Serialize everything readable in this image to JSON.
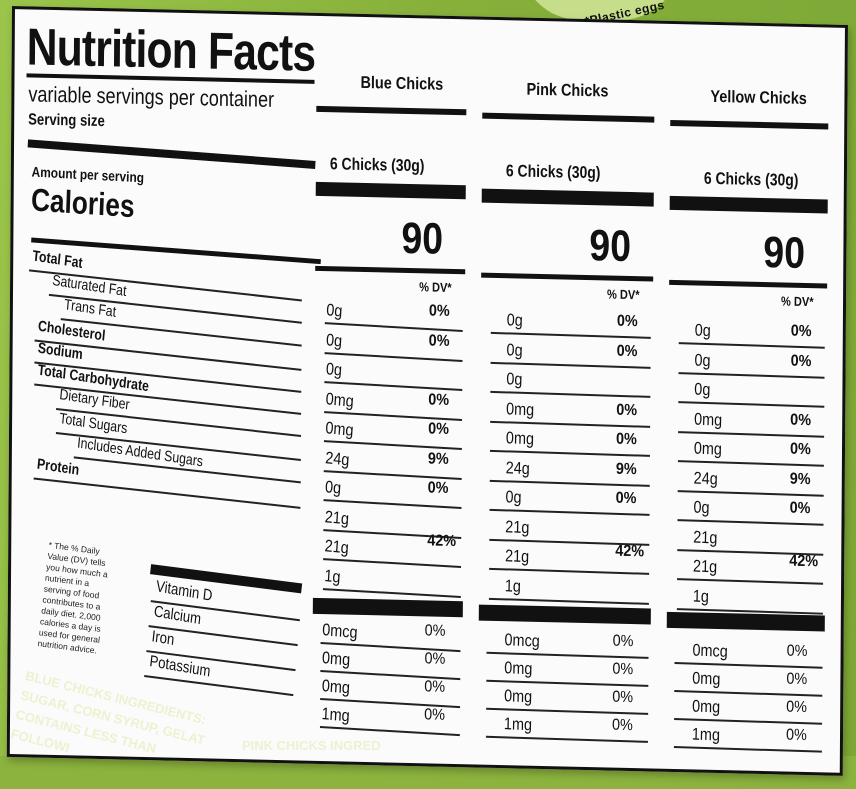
{
  "title": "Nutrition Facts",
  "servings_text": "variable servings per container",
  "serving_size_label": "Serving size",
  "amount_label": "Amount per serving",
  "calories_label": "Calories",
  "egg_note": "*Plastic eggs",
  "nutrient_labels": [
    {
      "text": "Total Fat",
      "bold": true
    },
    {
      "text": "Saturated Fat",
      "bold": false
    },
    {
      "text": "Trans Fat",
      "bold": false
    },
    {
      "text": "Cholesterol",
      "bold": true
    },
    {
      "text": "Sodium",
      "bold": true
    },
    {
      "text": "Total Carbohydrate",
      "bold": true
    },
    {
      "text": "Dietary Fiber",
      "bold": false
    },
    {
      "text": "Total Sugars",
      "bold": false
    },
    {
      "text": "Includes Added Sugars",
      "bold": false
    },
    {
      "text": "Protein",
      "bold": true
    }
  ],
  "vitamin_labels": [
    "Vitamin D",
    "Calcium",
    "Iron",
    "Potassium"
  ],
  "footnote": "* The % Daily Value (DV) tells you how much a nutrient in a serving of food contributes to a daily diet. 2,000 calories a day is used for general nutrition advice.",
  "columns": [
    {
      "name": "Blue Chicks",
      "serving": "6 Chicks (30g)",
      "calories": "90",
      "dv_header": "% DV*",
      "amounts": [
        "0g",
        "0g",
        "0g",
        "0mg",
        "0mg",
        "24g",
        "0g",
        "21g",
        "21g",
        "1g"
      ],
      "dv": [
        "0%",
        "0%",
        "",
        "0%",
        "0%",
        "9%",
        "0%",
        "",
        "42%",
        ""
      ],
      "vitamins": [
        {
          "amount": "0mcg",
          "dv": "0%"
        },
        {
          "amount": "0mg",
          "dv": "0%"
        },
        {
          "amount": "0mg",
          "dv": "0%"
        },
        {
          "amount": "1mg",
          "dv": "0%"
        }
      ]
    },
    {
      "name": "Pink Chicks",
      "serving": "6 Chicks (30g)",
      "calories": "90",
      "dv_header": "% DV*",
      "amounts": [
        "0g",
        "0g",
        "0g",
        "0mg",
        "0mg",
        "24g",
        "0g",
        "21g",
        "21g",
        "1g"
      ],
      "dv": [
        "0%",
        "0%",
        "",
        "0%",
        "0%",
        "9%",
        "0%",
        "",
        "42%",
        ""
      ],
      "vitamins": [
        {
          "amount": "0mcg",
          "dv": "0%"
        },
        {
          "amount": "0mg",
          "dv": "0%"
        },
        {
          "amount": "0mg",
          "dv": "0%"
        },
        {
          "amount": "1mg",
          "dv": "0%"
        }
      ]
    },
    {
      "name": "Yellow Chicks",
      "serving": "6 Chicks (30g)",
      "calories": "90",
      "dv_header": "% DV*",
      "amounts": [
        "0g",
        "0g",
        "0g",
        "0mg",
        "0mg",
        "24g",
        "0g",
        "21g",
        "21g",
        "1g"
      ],
      "dv": [
        "0%",
        "0%",
        "",
        "0%",
        "0%",
        "9%",
        "0%",
        "",
        "42%",
        ""
      ],
      "vitamins": [
        {
          "amount": "0mcg",
          "dv": "0%"
        },
        {
          "amount": "0mg",
          "dv": "0%"
        },
        {
          "amount": "0mg",
          "dv": "0%"
        },
        {
          "amount": "1mg",
          "dv": "0%"
        }
      ]
    }
  ],
  "ingredients_lines": [
    "BLUE CHICKS INGREDIENTS:",
    "SUGAR, CORN SYRUP, GELAT",
    "CONTAINS LESS THAN",
    "FOLLOWI"
  ],
  "ingredients_pink": "PINK CHICKS INGRED"
}
